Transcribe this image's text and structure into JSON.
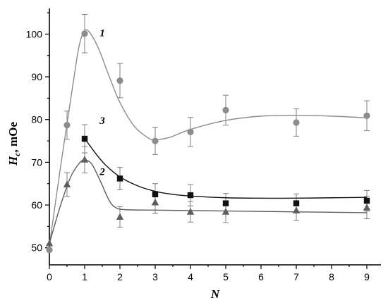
{
  "chart_data": {
    "type": "scatter",
    "title": "",
    "xlabel": "N",
    "ylabel_main": "H",
    "ylabel_sub": "c",
    "ylabel_rest": ", mOe",
    "xlim": [
      0,
      9.4
    ],
    "ylim": [
      46,
      106
    ],
    "xticks": [
      0,
      1,
      2,
      3,
      4,
      5,
      6,
      7,
      8,
      9
    ],
    "yticks": [
      50,
      60,
      70,
      80,
      90,
      100
    ],
    "grid": false,
    "series": [
      {
        "name": "1",
        "marker": "circle",
        "color": "#8c8c8c",
        "curve_color": "#8c8c8c",
        "label_at": [
          1.5,
          99.5
        ],
        "points": [
          {
            "x": 0,
            "y": 49.5,
            "err": 0
          },
          {
            "x": 0.5,
            "y": 78.7,
            "err": 3.3
          },
          {
            "x": 1,
            "y": 100.1,
            "err": 4.5
          },
          {
            "x": 2,
            "y": 89.1,
            "err": 4.0
          },
          {
            "x": 3,
            "y": 75.0,
            "err": 3.2
          },
          {
            "x": 4,
            "y": 77.1,
            "err": 3.4
          },
          {
            "x": 5,
            "y": 82.2,
            "err": 3.5
          },
          {
            "x": 7,
            "y": 79.3,
            "err": 3.2
          },
          {
            "x": 9,
            "y": 80.9,
            "err": 3.5
          }
        ],
        "curve": [
          [
            0,
            50.5
          ],
          [
            0.3,
            68
          ],
          [
            0.5,
            79
          ],
          [
            0.7,
            90
          ],
          [
            0.85,
            97.5
          ],
          [
            1,
            100.8
          ],
          [
            1.15,
            100.3
          ],
          [
            1.4,
            96.5
          ],
          [
            1.7,
            90
          ],
          [
            2,
            84
          ],
          [
            2.4,
            78.5
          ],
          [
            2.8,
            75.7
          ],
          [
            3,
            75.3
          ],
          [
            3.4,
            75.8
          ],
          [
            4,
            77.7
          ],
          [
            5,
            79.8
          ],
          [
            6,
            80.8
          ],
          [
            7,
            81
          ],
          [
            8,
            80.8
          ],
          [
            9,
            80.4
          ]
        ]
      },
      {
        "name": "3",
        "marker": "square",
        "color": "#111111",
        "curve_color": "#111111",
        "label_at": [
          1.5,
          79
        ],
        "points": [
          {
            "x": 1,
            "y": 75.5,
            "err": 3.3
          },
          {
            "x": 2,
            "y": 66.2,
            "err": 2.6
          },
          {
            "x": 3,
            "y": 62.5,
            "err": 2.5
          },
          {
            "x": 4,
            "y": 62.3,
            "err": 2.5
          },
          {
            "x": 5,
            "y": 60.4,
            "err": 2.3
          },
          {
            "x": 7,
            "y": 60.4,
            "err": 2.2
          },
          {
            "x": 9,
            "y": 61.0,
            "err": 2.4
          }
        ],
        "curve": [
          [
            1,
            75.6
          ],
          [
            1.3,
            72.2
          ],
          [
            1.6,
            69.3
          ],
          [
            2,
            66.6
          ],
          [
            2.5,
            64.5
          ],
          [
            3,
            63.2
          ],
          [
            3.5,
            62.5
          ],
          [
            4,
            62.1
          ],
          [
            5,
            61.7
          ],
          [
            6,
            61.6
          ],
          [
            7,
            61.6
          ],
          [
            8,
            61.7
          ],
          [
            9,
            61.8
          ]
        ]
      },
      {
        "name": "2",
        "marker": "triangle",
        "color": "#5e5e5e",
        "curve_color": "#5e5e5e",
        "label_at": [
          1.5,
          67
        ],
        "points": [
          {
            "x": 0,
            "y": 51.0,
            "err": 0
          },
          {
            "x": 0.5,
            "y": 64.8,
            "err": 2.8
          },
          {
            "x": 1,
            "y": 70.6,
            "err": 3.1
          },
          {
            "x": 2,
            "y": 57.2,
            "err": 2.4
          },
          {
            "x": 3,
            "y": 60.6,
            "err": 2.6
          },
          {
            "x": 4,
            "y": 58.4,
            "err": 2.4
          },
          {
            "x": 5,
            "y": 58.4,
            "err": 2.5
          },
          {
            "x": 7,
            "y": 58.7,
            "err": 2.3
          },
          {
            "x": 9,
            "y": 59.4,
            "err": 2.6
          }
        ],
        "curve": [
          [
            0,
            51
          ],
          [
            0.3,
            59.5
          ],
          [
            0.6,
            66.5
          ],
          [
            0.85,
            69.8
          ],
          [
            1,
            70.5
          ],
          [
            1.2,
            69.6
          ],
          [
            1.45,
            65.5
          ],
          [
            1.7,
            61
          ],
          [
            1.9,
            59.3
          ],
          [
            2.2,
            58.9
          ],
          [
            3,
            58.8
          ],
          [
            4,
            58.7
          ],
          [
            5,
            58.6
          ],
          [
            7,
            58.4
          ],
          [
            9,
            58.2
          ]
        ]
      }
    ]
  }
}
